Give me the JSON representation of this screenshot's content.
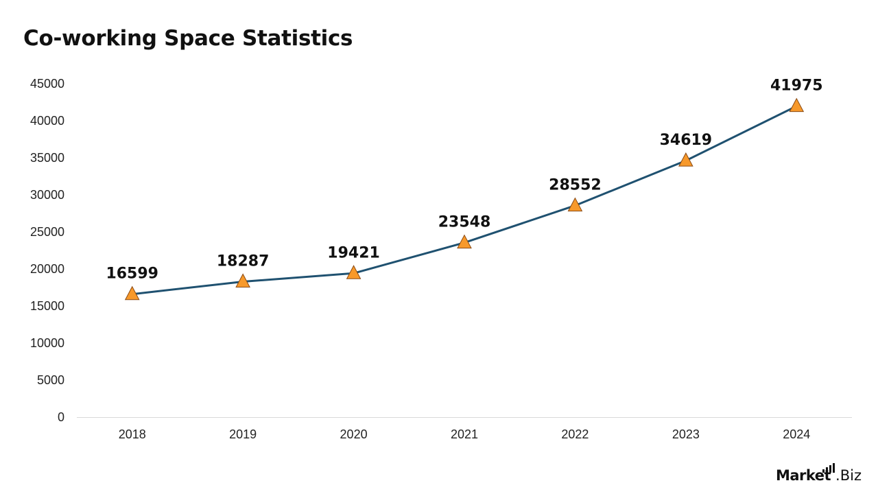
{
  "header": {
    "title": "Co-working Space Statistics"
  },
  "brand": {
    "name": "Market",
    "suffix": ".Biz"
  },
  "colors": {
    "line": "#1f5170",
    "marker_fill": "#f7992b",
    "marker_stroke": "#8a4a14",
    "axis": "#d9d9d9"
  },
  "chart_data": {
    "type": "line",
    "title": "Co-working Space Statistics",
    "xlabel": "",
    "ylabel": "",
    "categories": [
      "2018",
      "2019",
      "2020",
      "2021",
      "2022",
      "2023",
      "2024"
    ],
    "series": [
      {
        "values": [
          16599,
          18287,
          19421,
          23548,
          28552,
          34619,
          41975
        ],
        "marker": "triangle"
      }
    ],
    "ylim": [
      0,
      45000
    ],
    "yticks": [
      0,
      5000,
      10000,
      15000,
      20000,
      25000,
      30000,
      35000,
      40000,
      45000
    ],
    "grid": false,
    "legend": "none",
    "data_labels": true
  }
}
